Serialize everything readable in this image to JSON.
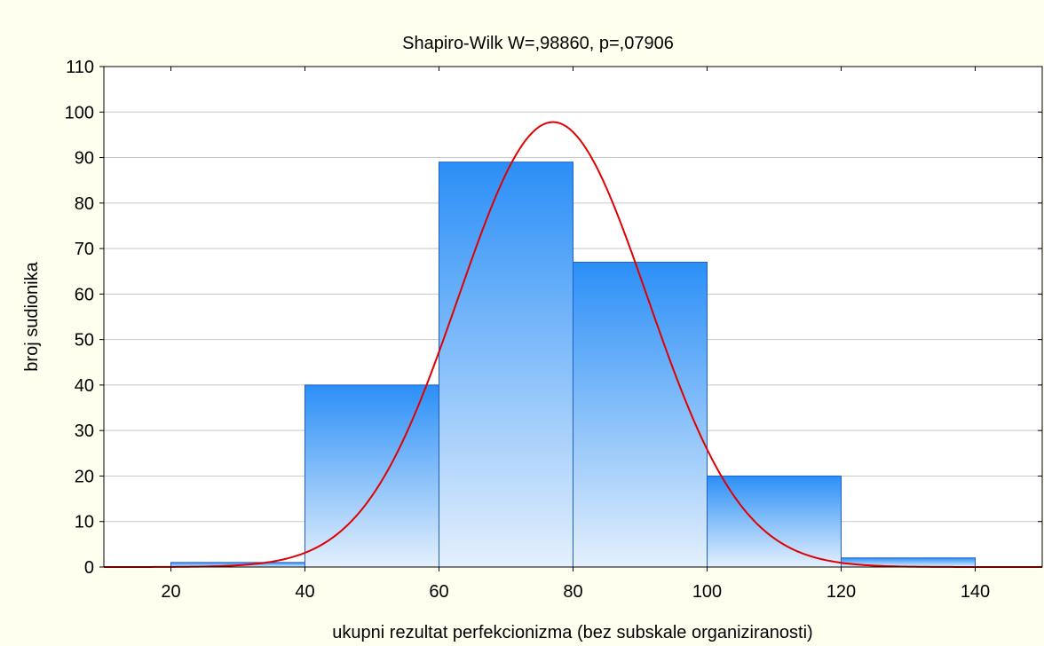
{
  "chart_data": {
    "type": "bar",
    "title": "Shapiro-Wilk W=,98860, p=,07906",
    "xlabel": "ukupni rezultat perfekcionizma (bez subskale organiziranosti)",
    "ylabel": "broj sudionika",
    "xlim": [
      10,
      150
    ],
    "ylim": [
      0,
      110
    ],
    "x_ticks": [
      20,
      40,
      60,
      80,
      100,
      120,
      140
    ],
    "y_ticks": [
      0,
      10,
      20,
      30,
      40,
      50,
      60,
      70,
      80,
      90,
      100,
      110
    ],
    "bins": [
      {
        "start": 20,
        "end": 40,
        "value": 1
      },
      {
        "start": 40,
        "end": 60,
        "value": 40
      },
      {
        "start": 60,
        "end": 80,
        "value": 89
      },
      {
        "start": 80,
        "end": 100,
        "value": 67
      },
      {
        "start": 100,
        "end": 120,
        "value": 20
      },
      {
        "start": 120,
        "end": 140,
        "value": 2
      }
    ],
    "normal_curve": {
      "mean": 77,
      "sd": 14.1,
      "peak": 97.8,
      "color": "#e00000"
    },
    "bar_color_top": "#2b8ff7",
    "bar_color_bottom": "#e4f0fd",
    "bar_stroke": "#1c5fd0",
    "grid": true,
    "legend": "none"
  }
}
